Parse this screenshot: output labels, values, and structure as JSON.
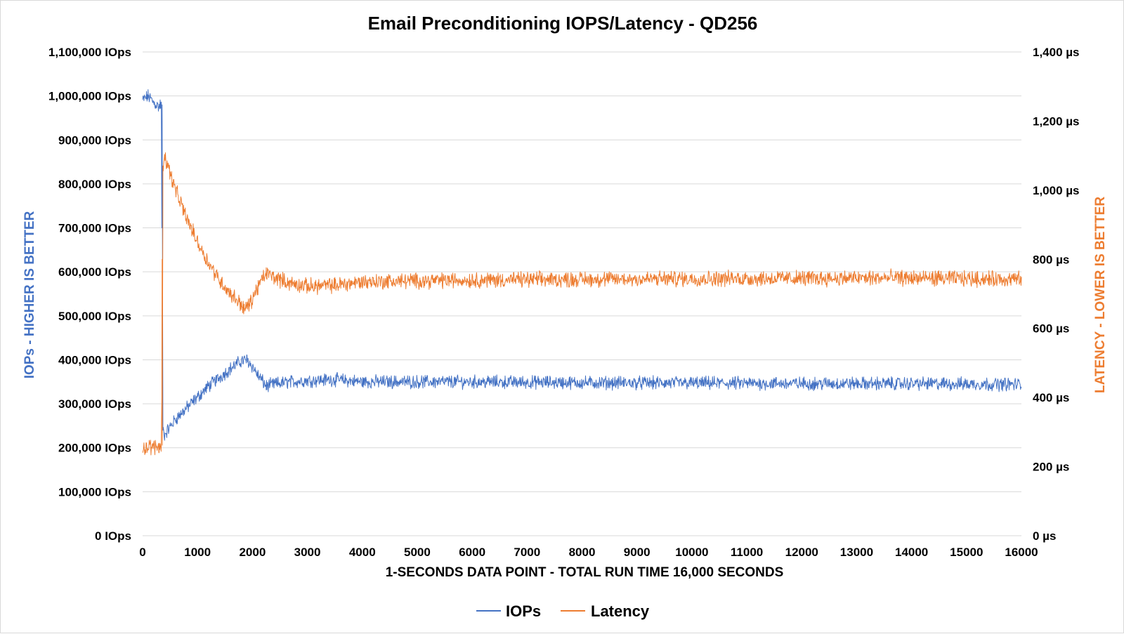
{
  "chart_data": {
    "type": "line",
    "title": "Email Preconditioning IOPS/Latency  - QD256",
    "xlabel": "1-SECONDS DATA POINT - TOTAL RUN TIME 16,000 SECONDS",
    "ylabel": "IOPs - HIGHER IS BETTER",
    "y2label": "LATENCY - LOWER IS BETTER",
    "xlim": [
      0,
      16000
    ],
    "ylim": [
      0,
      1100000
    ],
    "y2lim": [
      0,
      1400
    ],
    "x_ticks": [
      "0",
      "1000",
      "2000",
      "3000",
      "4000",
      "5000",
      "6000",
      "7000",
      "8000",
      "9000",
      "10000",
      "11000",
      "12000",
      "13000",
      "14000",
      "15000",
      "16000"
    ],
    "y_ticks": [
      "0 IOps",
      "100,000 IOps",
      "200,000 IOps",
      "300,000 IOps",
      "400,000 IOps",
      "500,000 IOps",
      "600,000 IOps",
      "700,000 IOps",
      "800,000 IOps",
      "900,000 IOps",
      "1,000,000 IOps",
      "1,100,000 IOps"
    ],
    "y_tick_values": [
      0,
      100000,
      200000,
      300000,
      400000,
      500000,
      600000,
      700000,
      800000,
      900000,
      1000000,
      1100000
    ],
    "y2_ticks": [
      "0 µs",
      "200 µs",
      "400 µs",
      "600 µs",
      "800 µs",
      "1,000 µs",
      "1,200 µs",
      "1,400 µs"
    ],
    "y2_tick_values": [
      0,
      200,
      400,
      600,
      800,
      1000,
      1200,
      1400
    ],
    "legend_position": "bottom",
    "grid": true,
    "series": [
      {
        "name": "IOPs",
        "axis": "left",
        "color": "#4472c4",
        "noise": 12000,
        "points": [
          [
            0,
            990000
          ],
          [
            100,
            1000000
          ],
          [
            200,
            985000
          ],
          [
            300,
            975000
          ],
          [
            340,
            985000
          ],
          [
            350,
            700000
          ],
          [
            355,
            980000
          ],
          [
            370,
            240000
          ],
          [
            400,
            230000
          ],
          [
            600,
            265000
          ],
          [
            800,
            290000
          ],
          [
            1000,
            315000
          ],
          [
            1200,
            340000
          ],
          [
            1400,
            360000
          ],
          [
            1600,
            380000
          ],
          [
            1800,
            398000
          ],
          [
            1900,
            400000
          ],
          [
            2000,
            385000
          ],
          [
            2100,
            365000
          ],
          [
            2250,
            340000
          ],
          [
            2400,
            345000
          ],
          [
            2700,
            350000
          ],
          [
            3000,
            353000
          ],
          [
            3500,
            355000
          ],
          [
            4000,
            350000
          ],
          [
            6000,
            350000
          ],
          [
            8000,
            348000
          ],
          [
            10000,
            347000
          ],
          [
            12000,
            346000
          ],
          [
            14000,
            346000
          ],
          [
            16000,
            344000
          ]
        ]
      },
      {
        "name": "Latency",
        "axis": "right",
        "color": "#ed7d31",
        "noise": 18,
        "points": [
          [
            0,
            255
          ],
          [
            300,
            258
          ],
          [
            340,
            262
          ],
          [
            350,
            400
          ],
          [
            355,
            800
          ],
          [
            358,
            262
          ],
          [
            370,
            1070
          ],
          [
            400,
            1100
          ],
          [
            600,
            1000
          ],
          [
            800,
            920
          ],
          [
            1000,
            850
          ],
          [
            1200,
            790
          ],
          [
            1400,
            740
          ],
          [
            1600,
            700
          ],
          [
            1800,
            670
          ],
          [
            1850,
            655
          ],
          [
            1950,
            670
          ],
          [
            2100,
            720
          ],
          [
            2250,
            760
          ],
          [
            2400,
            748
          ],
          [
            2700,
            730
          ],
          [
            3000,
            722
          ],
          [
            3500,
            725
          ],
          [
            4000,
            735
          ],
          [
            5000,
            738
          ],
          [
            6000,
            740
          ],
          [
            8000,
            742
          ],
          [
            10000,
            744
          ],
          [
            12000,
            745
          ],
          [
            14000,
            746
          ],
          [
            16000,
            742
          ]
        ]
      }
    ]
  }
}
